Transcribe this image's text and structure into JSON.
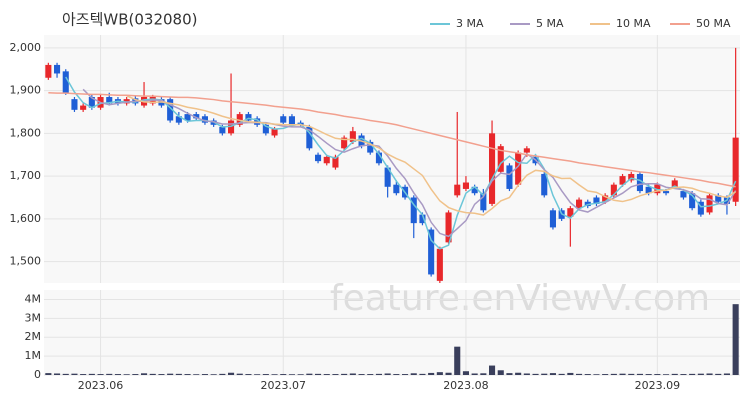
{
  "chart_data": {
    "type": "candlestick",
    "title": "아즈텍WB(032080)",
    "watermark": "feature.enViewV.com",
    "up_color": "#e8282b",
    "down_color": "#1f5fd6",
    "volume_color": "#3a3f5c",
    "open": [
      1930,
      1960,
      1945,
      1880,
      1855,
      1885,
      1860,
      1885,
      1880,
      1870,
      1882,
      1865,
      1870,
      1880,
      1880,
      1840,
      1845,
      1845,
      1840,
      1830,
      1815,
      1800,
      1820,
      1845,
      1835,
      1820,
      1795,
      1840,
      1840,
      1825,
      1815,
      1750,
      1730,
      1720,
      1765,
      1780,
      1795,
      1780,
      1755,
      1720,
      1680,
      1675,
      1650,
      1610,
      1575,
      1455,
      1545,
      1655,
      1670,
      1675,
      1660,
      1635,
      1710,
      1725,
      1680,
      1755,
      1745,
      1705,
      1620,
      1620,
      1605,
      1625,
      1640,
      1650,
      1640,
      1655,
      1680,
      1690,
      1705,
      1675,
      1660,
      1665,
      1675,
      1665,
      1660,
      1640,
      1615,
      1655,
      1650,
      1640
    ],
    "high": [
      1965,
      1965,
      1950,
      1885,
      1870,
      1890,
      1890,
      1895,
      1885,
      1885,
      1888,
      1920,
      1890,
      1885,
      1885,
      1850,
      1850,
      1850,
      1845,
      1835,
      1820,
      1940,
      1850,
      1850,
      1840,
      1825,
      1815,
      1845,
      1845,
      1830,
      1820,
      1755,
      1750,
      1750,
      1795,
      1815,
      1800,
      1785,
      1760,
      1725,
      1690,
      1680,
      1655,
      1615,
      1580,
      1535,
      1620,
      1850,
      1700,
      1680,
      1670,
      1830,
      1775,
      1730,
      1760,
      1770,
      1750,
      1710,
      1625,
      1625,
      1630,
      1650,
      1645,
      1655,
      1660,
      1685,
      1705,
      1710,
      1710,
      1680,
      1685,
      1670,
      1695,
      1670,
      1665,
      1645,
      1660,
      1660,
      1655,
      2000
    ],
    "low": [
      1925,
      1930,
      1890,
      1850,
      1850,
      1855,
      1855,
      1865,
      1865,
      1865,
      1865,
      1860,
      1865,
      1860,
      1825,
      1820,
      1825,
      1830,
      1820,
      1815,
      1795,
      1795,
      1815,
      1825,
      1815,
      1795,
      1790,
      1820,
      1815,
      1815,
      1760,
      1730,
      1725,
      1715,
      1760,
      1775,
      1765,
      1750,
      1725,
      1650,
      1655,
      1645,
      1555,
      1585,
      1465,
      1450,
      1540,
      1650,
      1665,
      1655,
      1615,
      1630,
      1705,
      1665,
      1675,
      1745,
      1725,
      1650,
      1575,
      1595,
      1535,
      1620,
      1625,
      1630,
      1635,
      1650,
      1675,
      1685,
      1660,
      1655,
      1655,
      1655,
      1670,
      1645,
      1620,
      1605,
      1610,
      1635,
      1610,
      1630
    ],
    "close": [
      1960,
      1940,
      1895,
      1855,
      1865,
      1860,
      1885,
      1870,
      1870,
      1880,
      1870,
      1885,
      1885,
      1865,
      1830,
      1825,
      1830,
      1835,
      1825,
      1820,
      1800,
      1830,
      1845,
      1830,
      1820,
      1800,
      1810,
      1825,
      1820,
      1820,
      1765,
      1735,
      1745,
      1745,
      1790,
      1805,
      1770,
      1755,
      1730,
      1675,
      1660,
      1650,
      1590,
      1590,
      1470,
      1530,
      1615,
      1680,
      1685,
      1660,
      1620,
      1800,
      1770,
      1670,
      1755,
      1765,
      1730,
      1655,
      1580,
      1600,
      1625,
      1645,
      1630,
      1635,
      1655,
      1680,
      1700,
      1705,
      1665,
      1660,
      1680,
      1660,
      1690,
      1650,
      1625,
      1610,
      1655,
      1640,
      1635,
      1790
    ],
    "volume": [
      100000,
      80000,
      60000,
      70000,
      50000,
      60000,
      50000,
      60000,
      50000,
      40000,
      50000,
      90000,
      60000,
      50000,
      70000,
      60000,
      50000,
      40000,
      50000,
      40000,
      60000,
      120000,
      70000,
      50000,
      40000,
      50000,
      40000,
      50000,
      40000,
      40000,
      70000,
      60000,
      50000,
      50000,
      60000,
      80000,
      50000,
      50000,
      60000,
      80000,
      50000,
      50000,
      90000,
      60000,
      110000,
      150000,
      120000,
      1500000,
      200000,
      80000,
      90000,
      500000,
      250000,
      100000,
      120000,
      80000,
      60000,
      70000,
      100000,
      60000,
      110000,
      60000,
      50000,
      40000,
      50000,
      60000,
      70000,
      60000,
      60000,
      50000,
      50000,
      40000,
      60000,
      50000,
      60000,
      70000,
      80000,
      60000,
      80000,
      3750000
    ],
    "ma": [
      {
        "name": "3 MA",
        "color": "#6cc6d8",
        "period": 3
      },
      {
        "name": "5 MA",
        "color": "#a99ac4",
        "period": 5
      },
      {
        "name": "10 MA",
        "color": "#f0c28a",
        "period": 10
      },
      {
        "name": "50 MA",
        "color": "#f2a08e",
        "values": [
          1895,
          1894,
          1894,
          1893,
          1892,
          1891,
          1891,
          1890,
          1889,
          1889,
          1888,
          1887,
          1887,
          1886,
          1885,
          1884,
          1884,
          1883,
          1881,
          1879,
          1876,
          1874,
          1872,
          1870,
          1868,
          1866,
          1863,
          1861,
          1859,
          1857,
          1854,
          1850,
          1847,
          1844,
          1840,
          1837,
          1834,
          1830,
          1827,
          1824,
          1820,
          1815,
          1810,
          1805,
          1800,
          1795,
          1790,
          1785,
          1780,
          1775,
          1770,
          1765,
          1760,
          1757,
          1754,
          1750,
          1747,
          1744,
          1741,
          1738,
          1735,
          1731,
          1728,
          1725,
          1722,
          1719,
          1716,
          1713,
          1710,
          1708,
          1705,
          1702,
          1699,
          1696,
          1693,
          1690,
          1686,
          1683,
          1679,
          1675
        ]
      }
    ],
    "ylim": [
      1450,
      2030
    ],
    "yticks": [
      {
        "value": 1500,
        "label": "1,500"
      },
      {
        "value": 1600,
        "label": "1,600"
      },
      {
        "value": 1700,
        "label": "1,700"
      },
      {
        "value": 1800,
        "label": "1,800"
      },
      {
        "value": 1900,
        "label": "1,900"
      },
      {
        "value": 2000,
        "label": "2,000"
      }
    ],
    "vlim": [
      0,
      4500000
    ],
    "vticks": [
      {
        "value": 0,
        "label": "0"
      },
      {
        "value": 1000000,
        "label": "1M"
      },
      {
        "value": 2000000,
        "label": "2M"
      },
      {
        "value": 3000000,
        "label": "3M"
      },
      {
        "value": 4000000,
        "label": "4M"
      }
    ],
    "xticks": [
      {
        "value": 6,
        "label": "2023.06"
      },
      {
        "value": 27,
        "label": "2023.07"
      },
      {
        "value": 48,
        "label": "2023.08"
      },
      {
        "value": 70,
        "label": "2023.09"
      }
    ],
    "grid": true
  }
}
